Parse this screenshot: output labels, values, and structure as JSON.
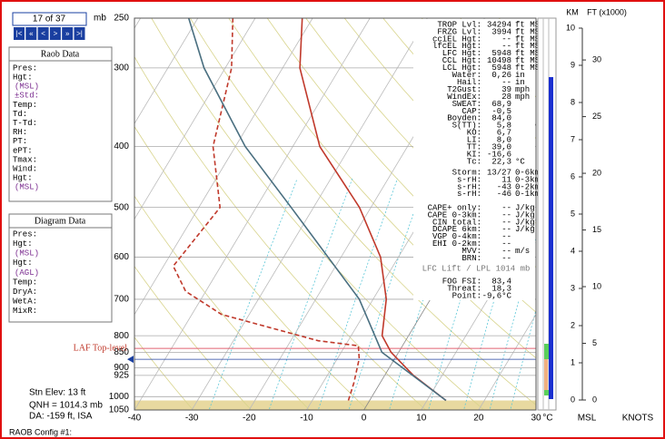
{
  "chart_data": {
    "type": "skew-t",
    "xlim": [
      -40,
      30
    ],
    "xticks": [
      -40,
      -30,
      -20,
      -10,
      0,
      10,
      20,
      30
    ],
    "x_unit": "°C",
    "ylim": [
      1050,
      250
    ],
    "yticks": [
      250,
      300,
      400,
      500,
      600,
      700,
      800,
      850,
      900,
      925,
      1000,
      1050
    ],
    "y_unit": "mb",
    "y_scale": "log",
    "series": [
      {
        "color": "#c0392b",
        "dash": false,
        "pressures": [
          1014,
          925,
          850,
          800,
          700,
          600,
          500,
          400,
          300,
          250
        ],
        "values": [
          13.3,
          5.0,
          -1.3,
          -4.6,
          -7.7,
          -13.1,
          -22,
          -35.3,
          -47,
          -51.8
        ]
      },
      {
        "color": "#c0392b",
        "dash": true,
        "pressures": [
          1014,
          950,
          870,
          830,
          815,
          740,
          680,
          620,
          500,
          400,
          300,
          250
        ],
        "values": [
          -3.7,
          -4.6,
          -6.2,
          -7.7,
          -15.2,
          -34.8,
          -43.5,
          -48.3,
          -46.3,
          -53.9,
          -58.9,
          -63.9
        ]
      },
      {
        "color": "#4a6f80",
        "dash": false,
        "pressures": [
          1014,
          850,
          700,
          500,
          400,
          300,
          250
        ],
        "values": [
          13.3,
          -2.9,
          -12.4,
          -33.9,
          -48.3,
          -63.7,
          -71.6
        ]
      }
    ],
    "laf_top": {
      "label": "LAF Top-level",
      "pressure": 838
    }
  },
  "navigator": {
    "page": "17 of 37",
    "buttons": [
      "|<",
      "«",
      "<",
      ">",
      "»",
      ">|"
    ]
  },
  "raob_panel": {
    "title": "Raob Data",
    "rows": [
      "Pres:",
      "Hgt:",
      "(MSL)",
      "±Std:",
      "Temp:",
      "Td:",
      "T-Td:",
      "RH:",
      "PT:",
      "ePT:",
      "Tmax:",
      "Wind:",
      "Hgt:",
      "(MSL)"
    ]
  },
  "diagram_panel": {
    "title": "Diagram Data",
    "rows": [
      "Pres:",
      "Hgt:",
      "(MSL)",
      "Hgt:",
      "(AGL)",
      "Temp:",
      "DryA:",
      "WetA:",
      "MixR:"
    ]
  },
  "index_table": {
    "groups": [
      [
        {
          "label": "TROP Lvl:",
          "value": "34294",
          "unit": "ft MSL"
        },
        {
          "label": "FRZG Lvl:",
          "value": "3994",
          "unit": "ft MSL"
        },
        {
          "label": "cciEL Hgt:",
          "value": "--",
          "unit": "ft MSL"
        },
        {
          "label": "lfcEL Hgt:",
          "value": "--",
          "unit": "ft MSL"
        },
        {
          "label": "LFC Hgt:",
          "value": "5948",
          "unit": "ft MSL"
        },
        {
          "label": "CCL Hgt:",
          "value": "10498",
          "unit": "ft MSL"
        },
        {
          "label": "LCL Hgt:",
          "value": "5948",
          "unit": "ft MSL"
        },
        {
          "label": "Water:",
          "value": "0,26",
          "unit": "in"
        },
        {
          "label": "Hail:",
          "value": "--",
          "unit": "in"
        },
        {
          "label": "T2Gust:",
          "value": "39",
          "unit": "mph"
        },
        {
          "label": "WindEx:",
          "value": "28",
          "unit": "mph"
        },
        {
          "label": "SWEAT:",
          "value": "68,9"
        },
        {
          "label": "CAP:",
          "value": "-0,5"
        },
        {
          "label": "Boyden:",
          "value": "84,0"
        },
        {
          "label": "S(TT):",
          "value": "5,8"
        },
        {
          "label": "KO:",
          "value": "6,7"
        },
        {
          "label": "LI:",
          "value": "8,0"
        },
        {
          "label": "TT:",
          "value": "39,0"
        },
        {
          "label": "KI:",
          "value": "-16,6"
        },
        {
          "label": "Tc:",
          "value": "22,3",
          "unit": "°C"
        }
      ],
      [
        {
          "label": "Storm:",
          "value": "13/27",
          "unit": "0-6km"
        },
        {
          "label": "s-rH:",
          "value": "11",
          "unit": "0-3km"
        },
        {
          "label": "s-rH:",
          "value": "-43",
          "unit": "0-2km"
        },
        {
          "label": "s-rH:",
          "value": "-46",
          "unit": "0-1km"
        }
      ],
      [
        {
          "label": "CAPE+ only:",
          "value": "--",
          "unit": "J/kg"
        },
        {
          "label": "CAPE 0-3km:",
          "value": "--",
          "unit": "J/kg"
        },
        {
          "label": "CIN total:",
          "value": "--",
          "unit": "J/kg"
        },
        {
          "label": "DCAPE 6km:",
          "value": "--",
          "unit": "J/kg"
        },
        {
          "label": "VGP 0-4km:",
          "value": "--"
        },
        {
          "label": "EHI 0-2km:",
          "value": "--"
        },
        {
          "label": "MVV:",
          "value": "--",
          "unit": "m/s"
        },
        {
          "label": "BRN:",
          "value": "--"
        }
      ],
      [
        {
          "label": "FOG FSI:",
          "value": "83,4"
        },
        {
          "label": "Threat:",
          "value": "18,3"
        },
        {
          "label": "Point:",
          "value": "-9,6°C"
        }
      ]
    ],
    "lift_note": "LFC Lift / LPL 1014 mb"
  },
  "station": [
    "Stn Elev: 13 ft",
    "QNH = 1014.3 mb",
    "DA: -159 ft, ISA"
  ],
  "config": "RAOB Config #1:",
  "height_axes": {
    "km_label": "KM",
    "ft_label": "FT (x1000)",
    "km_ticks": [
      0,
      1,
      2,
      3,
      4,
      5,
      6,
      7,
      8,
      9,
      10
    ],
    "ft_ticks": [
      0,
      5,
      10,
      15,
      20,
      25,
      30
    ],
    "bottom_labels": [
      "MSL",
      "KNOTS"
    ]
  }
}
